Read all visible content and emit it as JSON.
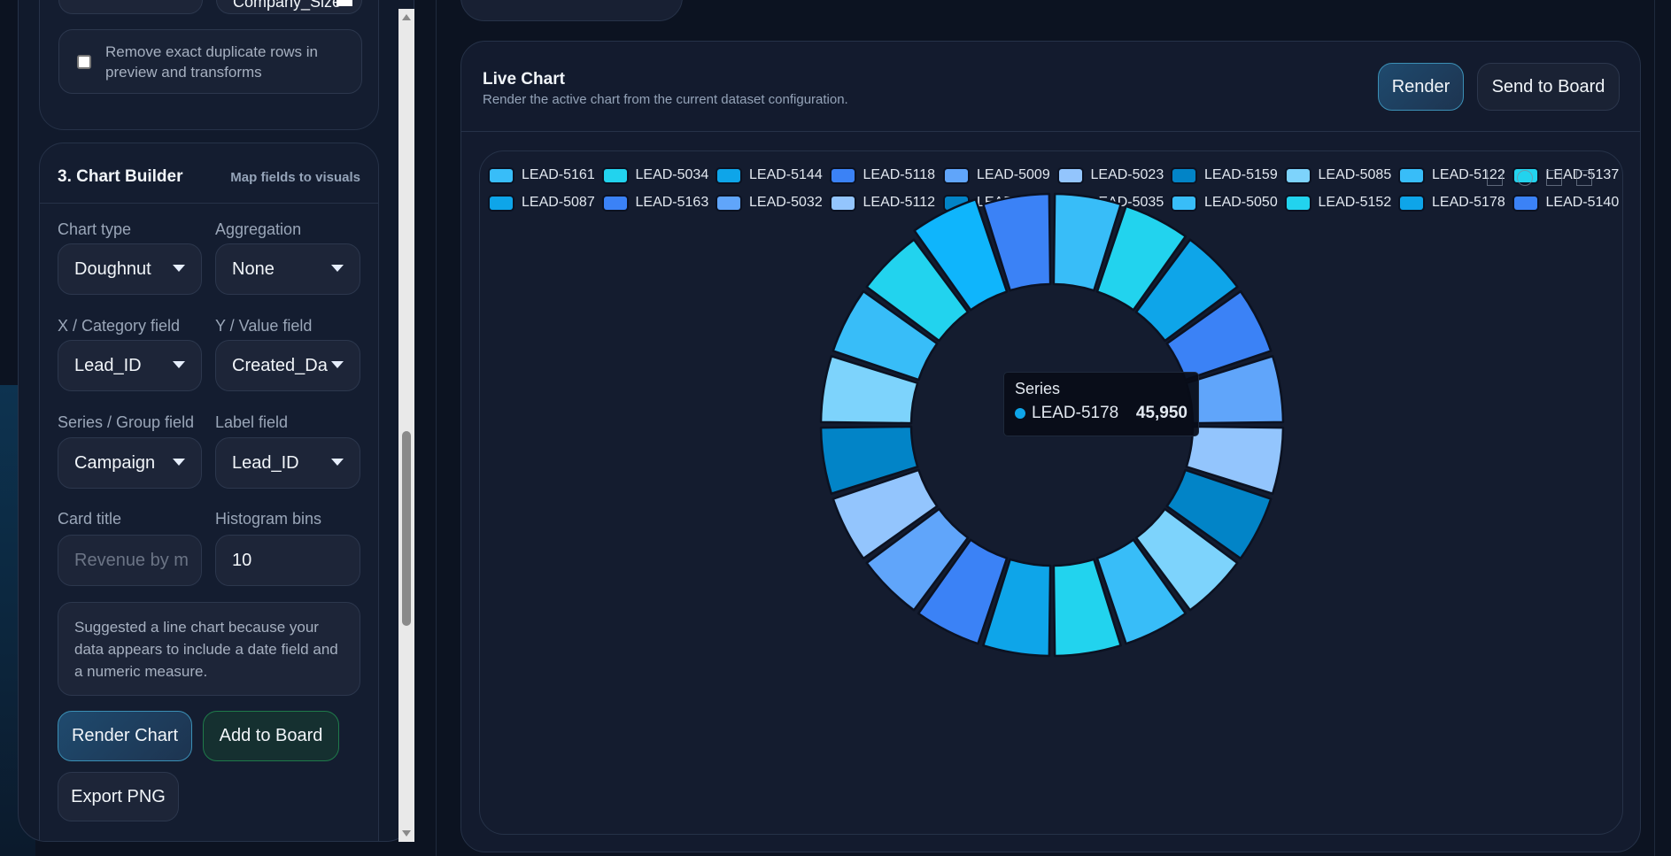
{
  "left": {
    "top_select_right": "Company_Size",
    "dedupe_label": "Remove exact duplicate rows in preview and transforms",
    "dedupe_checked": false,
    "builder": {
      "title": "3. Chart Builder",
      "subtitle": "Map fields to visuals",
      "chart_type_label": "Chart type",
      "chart_type": "Doughnut",
      "aggregation_label": "Aggregation",
      "aggregation": "None",
      "x_label": "X / Category field",
      "x_field": "Lead_ID",
      "y_label": "Y / Value field",
      "y_field": "Created_Da",
      "series_label": "Series / Group field",
      "series_field": "Campaign",
      "label_label": "Label field",
      "label_field": "Lead_ID",
      "card_title_label": "Card title",
      "card_title_placeholder": "Revenue by m",
      "bins_label": "Histogram bins",
      "bins": "10",
      "suggestion": "Suggested a line chart because your data appears to include a date field and a numeric measure.",
      "render_btn": "Render Chart",
      "add_btn": "Add to Board",
      "export_btn": "Export PNG"
    }
  },
  "main": {
    "title": "Live Chart",
    "subtitle": "Render the active chart from the current dataset configuration.",
    "render_btn": "Render",
    "send_btn": "Send to Board"
  },
  "tooltip": {
    "title": "Series",
    "label": "LEAD-5178",
    "value": "45,950"
  },
  "chart_data": {
    "type": "doughnut",
    "legend_position": "top",
    "categories": [
      "LEAD-5161",
      "LEAD-5034",
      "LEAD-5144",
      "LEAD-5118",
      "LEAD-5009",
      "LEAD-5023",
      "LEAD-5159",
      "LEAD-5085",
      "LEAD-5122",
      "LEAD-5137",
      "LEAD-5087",
      "LEAD-5163",
      "LEAD-5032",
      "LEAD-5112",
      "LEAD-5151",
      "LEAD-5035",
      "LEAD-5050",
      "LEAD-5152",
      "LEAD-5178",
      "LEAD-5140"
    ],
    "values": [
      45950,
      45950,
      45950,
      45950,
      45950,
      45950,
      45950,
      45950,
      45950,
      45950,
      45950,
      45950,
      45950,
      45950,
      45950,
      45950,
      45950,
      45950,
      45950,
      45950
    ],
    "highlighted": "LEAD-5178",
    "palette": [
      "#38bdf8",
      "#22d3ee",
      "#0ea5e9",
      "#3b82f6",
      "#60a5fa",
      "#93c5fd",
      "#0284c7",
      "#7dd3fc"
    ]
  }
}
